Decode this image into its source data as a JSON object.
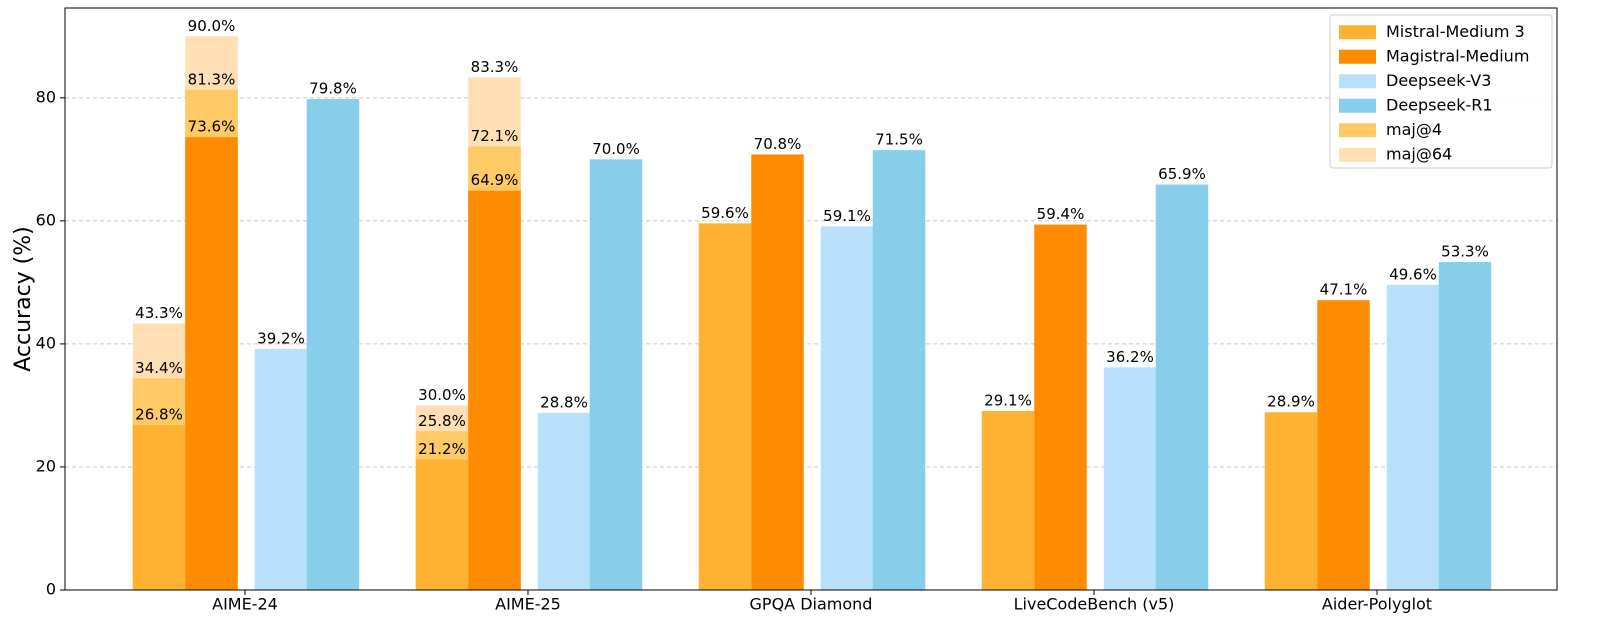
{
  "chart_data": {
    "type": "bar",
    "y_label": "Accuracy (%)",
    "categories": [
      "AIME-24",
      "AIME-25",
      "GPQA Diamond",
      "LiveCodeBench (v5)",
      "Aider-Polyglot"
    ],
    "series": [
      {
        "name": "Mistral-Medium 3",
        "color": "#ffb232",
        "values": [
          26.8,
          21.2,
          59.6,
          29.1,
          28.9
        ],
        "value_labels": [
          "26.8%",
          "21.2%",
          "59.6%",
          "29.1%",
          "28.9%"
        ]
      },
      {
        "name": "Magistral-Medium",
        "color": "#ff8c00",
        "values": [
          73.6,
          64.9,
          70.8,
          59.4,
          47.1
        ],
        "value_labels": [
          "73.6%",
          "64.9%",
          "70.8%",
          "59.4%",
          "47.1%"
        ]
      },
      {
        "name": "Deepseek-V3",
        "color": "#b9e0fa",
        "values": [
          39.2,
          28.8,
          59.1,
          36.2,
          49.6
        ],
        "value_labels": [
          "39.2%",
          "28.8%",
          "59.1%",
          "36.2%",
          "49.6%"
        ]
      },
      {
        "name": "Deepseek-R1",
        "color": "#87ceeb",
        "values": [
          79.8,
          70.0,
          71.5,
          65.9,
          53.3
        ],
        "value_labels": [
          "79.8%",
          "70.0%",
          "71.5%",
          "65.9%",
          "53.3%"
        ]
      }
    ],
    "overlays": [
      {
        "name": "maj@4",
        "color": "#ffc966",
        "values": [
          [
            34.4,
            25.8,
            null,
            null,
            null
          ],
          [
            81.3,
            72.1,
            null,
            null,
            null
          ]
        ],
        "value_labels": [
          [
            "34.4%",
            "25.8%",
            null,
            null,
            null
          ],
          [
            "81.3%",
            "72.1%",
            null,
            null,
            null
          ]
        ]
      },
      {
        "name": "maj@64",
        "color": "#ffdfb3",
        "values": [
          [
            43.3,
            30.0,
            null,
            null,
            null
          ],
          [
            90.0,
            83.3,
            null,
            null,
            null
          ]
        ],
        "value_labels": [
          [
            "43.3%",
            "30.0%",
            null,
            null,
            null
          ],
          [
            "90.0%",
            "83.3%",
            null,
            null,
            null
          ]
        ]
      }
    ],
    "ylim": [
      0,
      94.6
    ],
    "yticks": [
      0,
      20,
      40,
      60,
      80
    ],
    "grid": true,
    "legend": "upper right"
  }
}
